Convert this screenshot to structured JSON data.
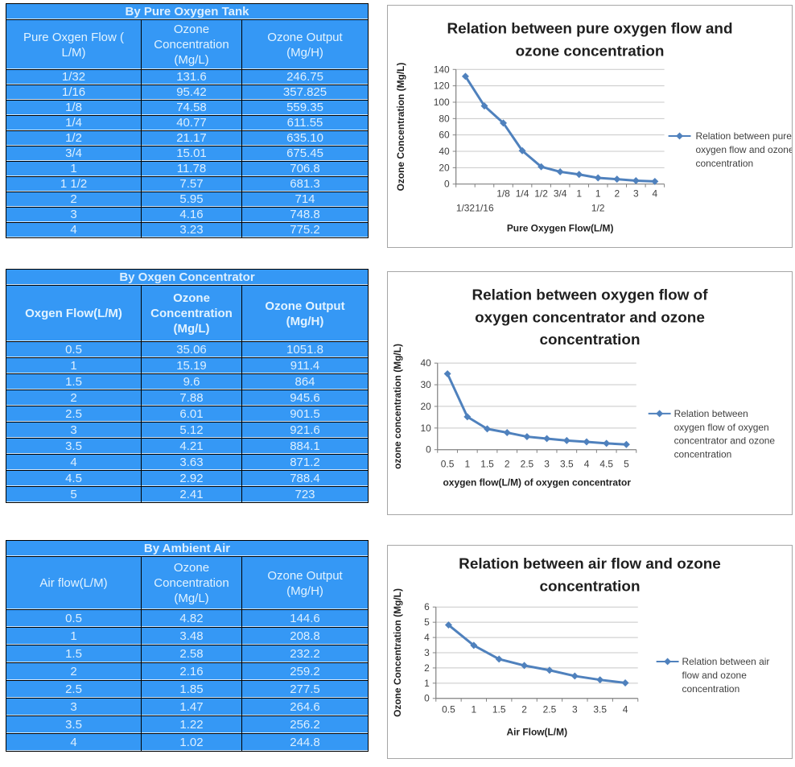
{
  "colors": {
    "table_bg": "#3598F5",
    "table_text": "#DCEFFF",
    "table_title_text": "#FFFFFF",
    "table_border": "#000000",
    "series_line": "#4F81BD",
    "chart_border": "#A6A6A6",
    "grid": "#C8C8C8",
    "axis": "#808080",
    "tick_text": "#3F3F3F",
    "title_text": "#1F1F1F"
  },
  "tables": [
    {
      "title": "By Pure Oxygen Tank",
      "headers": [
        "Pure Oxgen Flow (\nL/M)",
        "Ozone\nConcentration\n(Mg/L)",
        "Ozone Output\n(Mg/H)"
      ],
      "rows": [
        [
          "1/32",
          "131.6",
          "246.75"
        ],
        [
          "1/16",
          "95.42",
          "357.825"
        ],
        [
          "1/8",
          "74.58",
          "559.35"
        ],
        [
          "1/4",
          "40.77",
          "611.55"
        ],
        [
          "1/2",
          "21.17",
          "635.10"
        ],
        [
          "3/4",
          "15.01",
          "675.45"
        ],
        [
          "1",
          "11.78",
          "706.8"
        ],
        [
          "1  1/2",
          "7.57",
          "681.3"
        ],
        [
          "2",
          "5.95",
          "714"
        ],
        [
          "3",
          "4.16",
          "748.8"
        ],
        [
          "4",
          "3.23",
          "775.2"
        ]
      ]
    },
    {
      "title": "By Oxgen Concentrator",
      "headers": [
        "Oxgen Flow(L/M)",
        "Ozone\nConcentration\n(Mg/L)",
        "Ozone Output\n(Mg/H)"
      ],
      "rows": [
        [
          "0.5",
          "35.06",
          "1051.8"
        ],
        [
          "1",
          "15.19",
          "911.4"
        ],
        [
          "1.5",
          "9.6",
          "864"
        ],
        [
          "2",
          "7.88",
          "945.6"
        ],
        [
          "2.5",
          "6.01",
          "901.5"
        ],
        [
          "3",
          "5.12",
          "921.6"
        ],
        [
          "3.5",
          "4.21",
          "884.1"
        ],
        [
          "4",
          "3.63",
          "871.2"
        ],
        [
          "4.5",
          "2.92",
          "788.4"
        ],
        [
          "5",
          "2.41",
          "723"
        ]
      ]
    },
    {
      "title": "By Ambient Air",
      "headers": [
        "Air flow(L/M)",
        "Ozone\nConcentration\n(Mg/L)",
        "Ozone Output\n(Mg/H)"
      ],
      "rows": [
        [
          "0.5",
          "4.82",
          "144.6"
        ],
        [
          "1",
          "3.48",
          "208.8"
        ],
        [
          "1.5",
          "2.58",
          "232.2"
        ],
        [
          "2",
          "2.16",
          "259.2"
        ],
        [
          "2.5",
          "1.85",
          "277.5"
        ],
        [
          "3",
          "1.47",
          "264.6"
        ],
        [
          "3.5",
          "1.22",
          "256.2"
        ],
        [
          "4",
          "1.02",
          "244.8"
        ]
      ]
    }
  ],
  "chart_data": [
    {
      "type": "line",
      "title": "Relation between pure oxygen flow and ozone concentration",
      "title_lines": [
        "Relation between pure oxygen flow and",
        "ozone concentration"
      ],
      "xlabel": "Pure Oxygen Flow(L/M)",
      "ylabel": "Ozone Concentration (Mg/L)",
      "categories": [
        "1/32",
        "1/16",
        "1/8",
        "1/4",
        "1/2",
        "3/4",
        "1",
        "1 1/2",
        "2",
        "3",
        "4"
      ],
      "x_label_lines": [
        [
          "",
          "1/32"
        ],
        [
          "",
          "1/16"
        ],
        [
          "1/8",
          ""
        ],
        [
          "1/4",
          ""
        ],
        [
          "1/2",
          ""
        ],
        [
          "3/4",
          ""
        ],
        [
          "1",
          ""
        ],
        [
          "1",
          "1/2"
        ],
        [
          "2",
          ""
        ],
        [
          "3",
          ""
        ],
        [
          "4",
          ""
        ]
      ],
      "values": [
        131.6,
        95.42,
        74.58,
        40.77,
        21.17,
        15.01,
        11.78,
        7.57,
        5.95,
        4.16,
        3.23
      ],
      "ylim": [
        0,
        140
      ],
      "ytick_step": 20,
      "grid": true,
      "legend_position": "right",
      "legend": "Relation between pure oxygen flow and ozone concentration",
      "legend_lines": [
        "Relation between pure",
        "oxygen flow and  ozone",
        "concentration"
      ]
    },
    {
      "type": "line",
      "title": "Relation between oxygen flow of oxygen concentrator and ozone concentration",
      "title_lines": [
        "Relation between oxygen flow of",
        "oxygen concentrator and ozone",
        "concentration"
      ],
      "xlabel": "oxygen flow(L/M) of oxygen concentrator",
      "ylabel": "ozone concentration  (Mg/L)",
      "categories": [
        "0.5",
        "1",
        "1.5",
        "2",
        "2.5",
        "3",
        "3.5",
        "4",
        "4.5",
        "5"
      ],
      "values": [
        35.06,
        15.19,
        9.6,
        7.88,
        6.01,
        5.12,
        4.21,
        3.63,
        2.92,
        2.41
      ],
      "ylim": [
        0,
        40
      ],
      "ytick_step": 10,
      "grid": true,
      "legend_position": "right",
      "legend": "Relation between oxygen flow of oxygen concentrator and ozone concentration",
      "legend_lines": [
        "Relation between",
        "oxygen flow of oxygen",
        "concentrator and ozone",
        "concentration"
      ]
    },
    {
      "type": "line",
      "title": "Relation between air flow and ozone concentration",
      "title_lines": [
        "Relation between air flow and ozone",
        "concentration"
      ],
      "xlabel": "Air Flow(L/M)",
      "ylabel": "Ozone Concentration  (Mg/L)",
      "categories": [
        "0.5",
        "1",
        "1.5",
        "2",
        "2.5",
        "3",
        "3.5",
        "4"
      ],
      "values": [
        4.82,
        3.48,
        2.58,
        2.16,
        1.85,
        1.47,
        1.22,
        1.02
      ],
      "ylim": [
        0,
        6
      ],
      "ytick_step": 1,
      "grid": true,
      "legend_position": "right",
      "legend": "Relation between air flow and ozone concentration",
      "legend_lines": [
        "Relation between air",
        "flow and ozone",
        "concentration"
      ]
    }
  ]
}
